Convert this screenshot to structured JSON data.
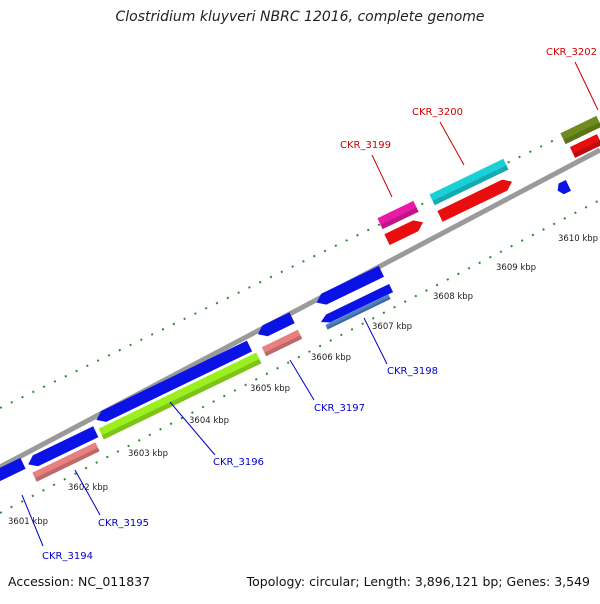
{
  "title": "Clostridium kluyveri NBRC 12016, complete genome",
  "footer": {
    "accession_label": "Accession: NC_011837",
    "summary_label": "Topology: circular; Length: 3,896,121 bp; Genes: 3,549"
  },
  "colors": {
    "backbone": "#9a9a9a",
    "tick_minor": "#2e8b2e",
    "tick_label": "#222222",
    "gene_label_forward": "#cc0000",
    "gene_label_reverse": "#0000cc"
  },
  "ticks": [
    {
      "label": "3601 kbp"
    },
    {
      "label": "3602 kbp"
    },
    {
      "label": "3603 kbp"
    },
    {
      "label": "3604 kbp"
    },
    {
      "label": "3605 kbp"
    },
    {
      "label": "3606 kbp"
    },
    {
      "label": "3607 kbp"
    },
    {
      "label": "3608 kbp"
    },
    {
      "label": "3609 kbp"
    },
    {
      "label": "3610 kbp"
    }
  ],
  "gene_labels": [
    {
      "name": "CKR_3194",
      "strand": "reverse"
    },
    {
      "name": "CKR_3195",
      "strand": "reverse"
    },
    {
      "name": "CKR_3196",
      "strand": "reverse"
    },
    {
      "name": "CKR_3197",
      "strand": "reverse"
    },
    {
      "name": "CKR_3198",
      "strand": "reverse"
    },
    {
      "name": "CKR_3199",
      "strand": "forward"
    },
    {
      "name": "CKR_3200",
      "strand": "forward"
    },
    {
      "name": "CKR_3202",
      "strand": "forward"
    }
  ],
  "features": [
    {
      "id": "f1",
      "color": "#0b12e6"
    },
    {
      "id": "f2",
      "color": "#0b12e6"
    },
    {
      "id": "f3",
      "color": "#e88080"
    },
    {
      "id": "f4",
      "color": "#0b12e6"
    },
    {
      "id": "f5",
      "color": "#9af01e"
    },
    {
      "id": "f6",
      "color": "#0b12e6"
    },
    {
      "id": "f7",
      "color": "#e88080"
    },
    {
      "id": "f8",
      "color": "#0b12e6"
    },
    {
      "id": "f9",
      "color": "#0b12e6"
    },
    {
      "id": "f10",
      "color": "#4a7fc0"
    },
    {
      "id": "f11",
      "color": "#e81aa8"
    },
    {
      "id": "f12",
      "color": "#e80e0e"
    },
    {
      "id": "f13",
      "color": "#1ad0d8"
    },
    {
      "id": "f14",
      "color": "#e80e0e"
    },
    {
      "id": "f15",
      "color": "#0b12e6"
    },
    {
      "id": "f16",
      "color": "#6e8c1e"
    },
    {
      "id": "f17",
      "color": "#e80e0e"
    }
  ]
}
